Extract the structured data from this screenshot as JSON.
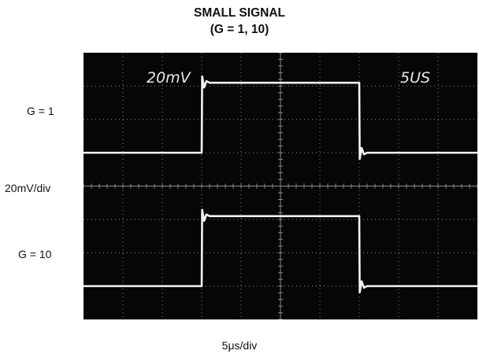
{
  "title_line1": "SMALL SIGNAL",
  "title_line2": "(G = 1, 10)",
  "label_g1": "G = 1",
  "label_vdiv": "20mV/div",
  "label_g10": "G = 10",
  "label_xunit": "5μs/div",
  "scope_volts": "20mV",
  "scope_time": "5US",
  "chart_data": {
    "type": "line",
    "title": "SMALL SIGNAL (G = 1, 10)",
    "xlabel": "5μs/div",
    "ylabel": "20mV/div",
    "x_divisions": 10,
    "y_divisions": 8,
    "grid": true,
    "trace_color": "#f2f2f2",
    "screen_color": "#060606",
    "series": [
      {
        "name": "G = 1",
        "x": [
          0,
          3,
          3,
          7,
          7,
          10
        ],
        "y": [
          5,
          5,
          7.1,
          7.1,
          5,
          5
        ]
      },
      {
        "name": "G = 10",
        "x": [
          0,
          3,
          3,
          7,
          7,
          10
        ],
        "y": [
          1,
          1,
          3.1,
          3.1,
          1,
          1
        ]
      }
    ]
  }
}
